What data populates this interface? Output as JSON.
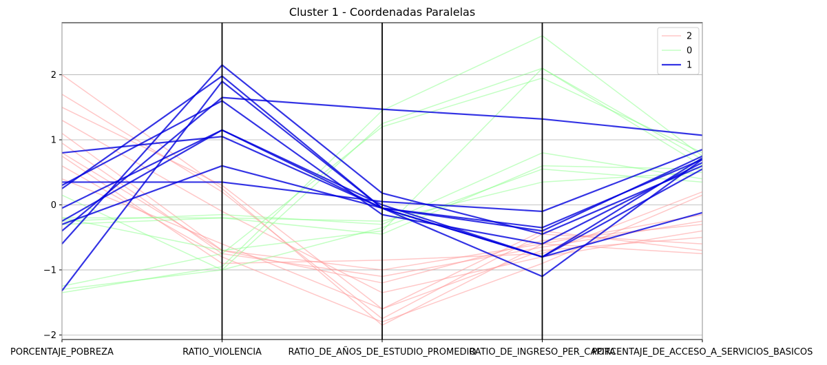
{
  "chart_data": {
    "type": "parallel-coordinates",
    "title": "Cluster 1 - Coordenadas Paralelas",
    "axes": [
      "PORCENTAJE_POBREZA",
      "RATIO_VIOLENCIA",
      "RATIO_DE_AÑOS_DE_ESTUDIO_PROMEDIO",
      "RATIO_DE_INGRESO_PER_CAPITA",
      "PORCENTAJE_DE_ACCESO_A_SERVICIOS_BASICOS"
    ],
    "ylim": [
      -2.07,
      2.8
    ],
    "yticks": [
      -2,
      -1,
      0,
      1,
      2
    ],
    "grid": true,
    "legend_position": "top-right",
    "series": [
      {
        "name": "2",
        "color": "#ff9999",
        "opacity": 0.55,
        "linewidth": 1.5,
        "lines": [
          [
            2.0,
            0.25,
            -1.85,
            -0.6,
            -0.75
          ],
          [
            1.7,
            0.2,
            -1.75,
            -0.45,
            -0.6
          ],
          [
            1.5,
            0.3,
            -1.6,
            -0.7,
            -0.5
          ],
          [
            1.3,
            -0.1,
            -1.35,
            -0.8,
            -0.4
          ],
          [
            1.1,
            -0.7,
            -1.2,
            -0.55,
            -0.3
          ],
          [
            0.95,
            -0.75,
            -1.1,
            -0.65,
            -0.25
          ],
          [
            0.8,
            -0.7,
            -1.0,
            -0.6,
            -0.15
          ],
          [
            0.75,
            -0.9,
            -0.85,
            -0.75,
            0.2
          ],
          [
            0.6,
            -0.8,
            -1.8,
            -0.9,
            0.15
          ],
          [
            0.4,
            -0.6,
            -1.6,
            -0.4,
            -0.7
          ]
        ]
      },
      {
        "name": "0",
        "color": "#88ff88",
        "opacity": 0.5,
        "linewidth": 1.5,
        "lines": [
          [
            -1.3,
            -1.0,
            1.25,
            2.1,
            0.7
          ],
          [
            -1.35,
            -0.95,
            1.45,
            2.6,
            0.75
          ],
          [
            -1.25,
            -0.75,
            1.2,
            1.95,
            0.8
          ],
          [
            -0.2,
            -0.7,
            -0.4,
            2.1,
            0.6
          ],
          [
            -0.25,
            -0.15,
            -0.3,
            0.8,
            0.4
          ],
          [
            -0.3,
            -0.2,
            -0.45,
            0.6,
            0.55
          ],
          [
            0.15,
            -1.0,
            -0.35,
            0.55,
            0.35
          ],
          [
            -0.2,
            -0.2,
            -0.25,
            0.35,
            0.5
          ]
        ]
      },
      {
        "name": "1",
        "color": "#0000dd",
        "opacity": 0.8,
        "linewidth": 2.2,
        "lines": [
          [
            0.8,
            1.05,
            -0.05,
            -0.8,
            0.72
          ],
          [
            0.35,
            0.35,
            0.05,
            -0.1,
            0.85
          ],
          [
            -0.3,
            0.6,
            -0.05,
            -0.35,
            0.7
          ],
          [
            -0.6,
            2.15,
            0.18,
            -0.45,
            0.6
          ],
          [
            0.25,
            1.98,
            -0.05,
            -0.8,
            0.55
          ],
          [
            0.3,
            1.6,
            -0.15,
            -0.6,
            0.65
          ],
          [
            -1.32,
            1.9,
            -0.05,
            -0.4,
            0.75
          ],
          [
            -0.05,
            1.15,
            -0.05,
            -1.1,
            0.7
          ],
          [
            -0.25,
            1.15,
            0.0,
            -0.8,
            -0.12
          ],
          [
            -0.4,
            1.65,
            1.47,
            1.32,
            1.07
          ]
        ]
      }
    ]
  }
}
